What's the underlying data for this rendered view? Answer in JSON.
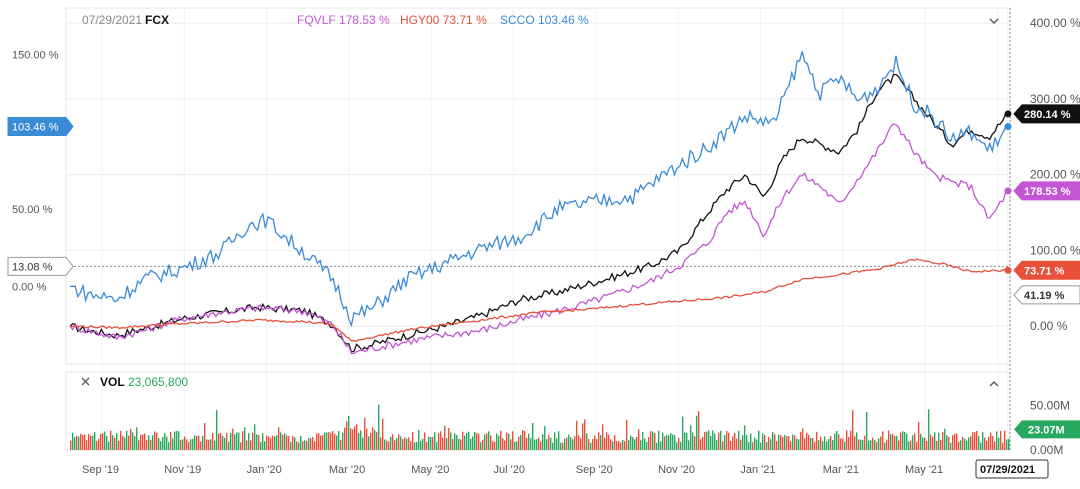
{
  "header": {
    "date": "07/29/2021",
    "primary_symbol": "FCX",
    "comparisons": [
      {
        "symbol": "FQVLF",
        "value": "178.53 %",
        "color": "#c455d4"
      },
      {
        "symbol": "HGY00",
        "value": "73.71 %",
        "color": "#e8503a"
      },
      {
        "symbol": "SCCO",
        "value": "103.46 %",
        "color": "#3a8bd6"
      }
    ],
    "collapse_icon": "chevron-down-icon"
  },
  "volume_header": {
    "close_icon": "close-icon",
    "label": "VOL",
    "value": "23,065,800",
    "collapse_icon": "chevron-up-icon"
  },
  "chart_data": {
    "type": "line",
    "x_ticks": [
      "Sep '19",
      "Nov '19",
      "Jan '20",
      "Mar '20",
      "May '20",
      "Jul '20",
      "Sep '20",
      "Nov '20",
      "Jan '21",
      "Mar '21",
      "May '21",
      "Jul",
      "07/29/2021"
    ],
    "left_axis_ticks": [
      "150.00 %",
      "50.00 %",
      "0.00 %"
    ],
    "right_axis_ticks": [
      "400.00 %",
      "300.00 %",
      "200.00 %",
      "100.00 %",
      "0.00 %"
    ],
    "left_markers": [
      {
        "label": "103.46 %",
        "value": 103.46,
        "color": "#3a8bd6"
      },
      {
        "label": "13.08 %",
        "value": 13.08,
        "color": "#ffffff"
      }
    ],
    "right_markers": [
      {
        "label": "280.14 %",
        "value": 280.14,
        "color": "#111111"
      },
      {
        "label": "178.53 %",
        "value": 178.53,
        "color": "#c455d4"
      },
      {
        "label": "73.71 %",
        "value": 73.71,
        "color": "#e8503a"
      },
      {
        "label": "41.19 %",
        "value": 41.19,
        "color": "#ffffff"
      }
    ],
    "crosshair_label": "07/29/2021",
    "series": [
      {
        "name": "FCX",
        "axis": "right",
        "color": "#111111",
        "points": [
          [
            0,
            0
          ],
          [
            0.02,
            -6
          ],
          [
            0.05,
            -12
          ],
          [
            0.08,
            -3
          ],
          [
            0.12,
            10
          ],
          [
            0.16,
            18
          ],
          [
            0.2,
            25
          ],
          [
            0.23,
            22
          ],
          [
            0.25,
            20
          ],
          [
            0.28,
            2
          ],
          [
            0.3,
            -30
          ],
          [
            0.32,
            -25
          ],
          [
            0.36,
            -12
          ],
          [
            0.4,
            0
          ],
          [
            0.44,
            15
          ],
          [
            0.48,
            35
          ],
          [
            0.52,
            45
          ],
          [
            0.55,
            55
          ],
          [
            0.58,
            65
          ],
          [
            0.62,
            80
          ],
          [
            0.65,
            100
          ],
          [
            0.68,
            150
          ],
          [
            0.7,
            180
          ],
          [
            0.72,
            200
          ],
          [
            0.74,
            170
          ],
          [
            0.76,
            220
          ],
          [
            0.78,
            250
          ],
          [
            0.8,
            240
          ],
          [
            0.82,
            230
          ],
          [
            0.84,
            260
          ],
          [
            0.86,
            310
          ],
          [
            0.88,
            330
          ],
          [
            0.9,
            300
          ],
          [
            0.92,
            270
          ],
          [
            0.94,
            240
          ],
          [
            0.96,
            260
          ],
          [
            0.98,
            250
          ],
          [
            1.0,
            280.14
          ]
        ]
      },
      {
        "name": "FQVLF",
        "axis": "right",
        "color": "#c455d4",
        "points": [
          [
            0,
            0
          ],
          [
            0.02,
            -6
          ],
          [
            0.05,
            -15
          ],
          [
            0.08,
            -5
          ],
          [
            0.12,
            10
          ],
          [
            0.16,
            18
          ],
          [
            0.2,
            24
          ],
          [
            0.23,
            22
          ],
          [
            0.25,
            20
          ],
          [
            0.28,
            2
          ],
          [
            0.3,
            -35
          ],
          [
            0.32,
            -30
          ],
          [
            0.36,
            -20
          ],
          [
            0.4,
            -12
          ],
          [
            0.44,
            -5
          ],
          [
            0.48,
            8
          ],
          [
            0.52,
            20
          ],
          [
            0.55,
            30
          ],
          [
            0.58,
            42
          ],
          [
            0.62,
            60
          ],
          [
            0.65,
            80
          ],
          [
            0.68,
            110
          ],
          [
            0.7,
            150
          ],
          [
            0.72,
            165
          ],
          [
            0.74,
            120
          ],
          [
            0.76,
            170
          ],
          [
            0.78,
            200
          ],
          [
            0.8,
            185
          ],
          [
            0.82,
            160
          ],
          [
            0.84,
            195
          ],
          [
            0.86,
            230
          ],
          [
            0.88,
            270
          ],
          [
            0.9,
            230
          ],
          [
            0.92,
            200
          ],
          [
            0.94,
            190
          ],
          [
            0.96,
            185
          ],
          [
            0.98,
            140
          ],
          [
            1.0,
            178.53
          ]
        ]
      },
      {
        "name": "HGY00",
        "axis": "right",
        "color": "#e8503a",
        "points": [
          [
            0,
            0
          ],
          [
            0.05,
            -2
          ],
          [
            0.1,
            2
          ],
          [
            0.15,
            5
          ],
          [
            0.2,
            8
          ],
          [
            0.25,
            6
          ],
          [
            0.28,
            2
          ],
          [
            0.3,
            -20
          ],
          [
            0.32,
            -15
          ],
          [
            0.36,
            -5
          ],
          [
            0.4,
            2
          ],
          [
            0.45,
            10
          ],
          [
            0.5,
            18
          ],
          [
            0.55,
            22
          ],
          [
            0.6,
            28
          ],
          [
            0.65,
            33
          ],
          [
            0.7,
            38
          ],
          [
            0.74,
            45
          ],
          [
            0.78,
            62
          ],
          [
            0.82,
            68
          ],
          [
            0.86,
            75
          ],
          [
            0.9,
            88
          ],
          [
            0.93,
            82
          ],
          [
            0.96,
            72
          ],
          [
            1.0,
            73.71
          ]
        ]
      },
      {
        "name": "SCCO",
        "axis": "left",
        "color": "#3a8bd6",
        "points": [
          [
            0,
            0
          ],
          [
            0.02,
            -5
          ],
          [
            0.05,
            -8
          ],
          [
            0.08,
            5
          ],
          [
            0.12,
            12
          ],
          [
            0.16,
            22
          ],
          [
            0.19,
            40
          ],
          [
            0.21,
            43
          ],
          [
            0.23,
            32
          ],
          [
            0.25,
            22
          ],
          [
            0.28,
            5
          ],
          [
            0.3,
            -20
          ],
          [
            0.32,
            -15
          ],
          [
            0.36,
            5
          ],
          [
            0.4,
            15
          ],
          [
            0.44,
            25
          ],
          [
            0.48,
            32
          ],
          [
            0.52,
            50
          ],
          [
            0.56,
            55
          ],
          [
            0.6,
            58
          ],
          [
            0.64,
            75
          ],
          [
            0.68,
            90
          ],
          [
            0.72,
            110
          ],
          [
            0.75,
            105
          ],
          [
            0.78,
            150
          ],
          [
            0.8,
            125
          ],
          [
            0.82,
            135
          ],
          [
            0.84,
            120
          ],
          [
            0.86,
            128
          ],
          [
            0.88,
            145
          ],
          [
            0.9,
            118
          ],
          [
            0.92,
            110
          ],
          [
            0.94,
            95
          ],
          [
            0.96,
            100
          ],
          [
            0.98,
            88
          ],
          [
            1.0,
            103.46
          ]
        ]
      }
    ],
    "volume_axis_ticks": [
      "50.00M",
      "0.00M"
    ],
    "volume_marker": {
      "label": "23.07M",
      "value": 23.07,
      "color": "#27a85f"
    },
    "left_axis_range": [
      -50,
      180
    ],
    "right_axis_range": [
      -50,
      420
    ],
    "volume_range": [
      0,
      65
    ]
  }
}
